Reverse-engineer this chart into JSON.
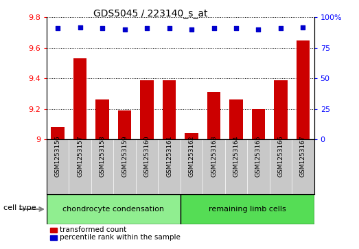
{
  "title": "GDS5045 / 223140_s_at",
  "categories": [
    "GSM1253156",
    "GSM1253157",
    "GSM1253158",
    "GSM1253159",
    "GSM1253160",
    "GSM1253161",
    "GSM1253162",
    "GSM1253163",
    "GSM1253164",
    "GSM1253165",
    "GSM1253166",
    "GSM1253167"
  ],
  "bar_values": [
    9.08,
    9.53,
    9.26,
    9.19,
    9.39,
    9.39,
    9.04,
    9.31,
    9.26,
    9.2,
    9.39,
    9.65
  ],
  "percentile_values": [
    91,
    92,
    91,
    90,
    91,
    91,
    90,
    91,
    91,
    90,
    91,
    92
  ],
  "bar_color": "#cc0000",
  "dot_color": "#0000cc",
  "ylim_left": [
    9.0,
    9.8
  ],
  "ylim_right": [
    0,
    100
  ],
  "yticks_left": [
    9.0,
    9.2,
    9.4,
    9.6,
    9.8
  ],
  "ytick_labels_left": [
    "9",
    "9.2",
    "9.4",
    "9.6",
    "9.8"
  ],
  "yticks_right": [
    0,
    25,
    50,
    75,
    100
  ],
  "ytick_labels_right": [
    "0",
    "25",
    "50",
    "75",
    "100%"
  ],
  "group1_label": "chondrocyte condensation",
  "group2_label": "remaining limb cells",
  "group1_count": 6,
  "group2_count": 6,
  "group1_color": "#90ee90",
  "group2_color": "#55dd55",
  "cell_type_label": "cell type",
  "legend1_label": "transformed count",
  "legend2_label": "percentile rank within the sample",
  "label_bg_color": "#c8c8c8",
  "plot_bg": "#ffffff",
  "bar_bottom": 9.0
}
